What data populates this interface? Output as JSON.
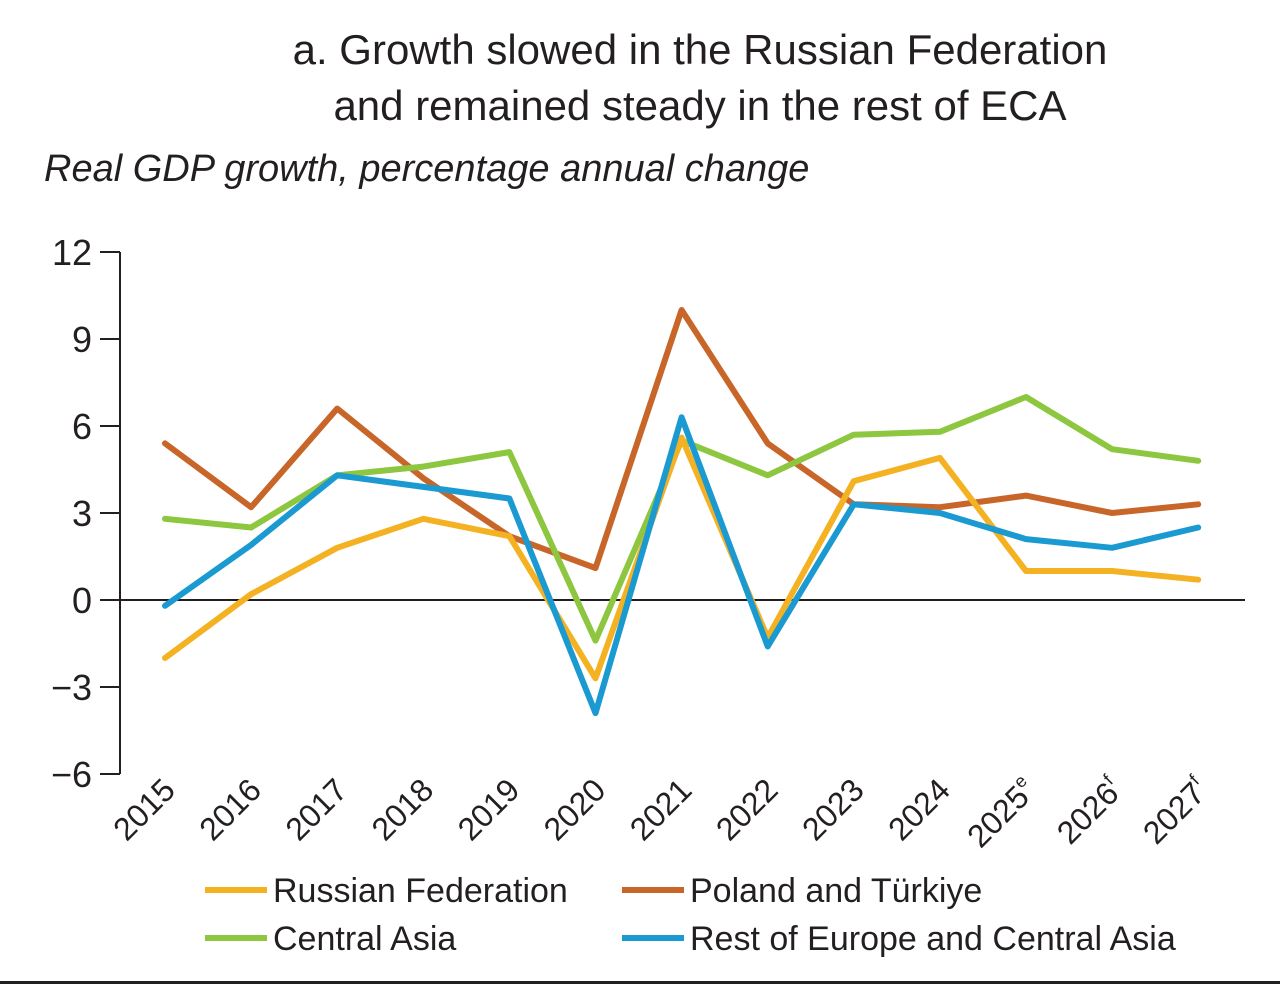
{
  "chart_data": {
    "type": "line",
    "title": "a. Growth slowed in the Russian Federation and remained steady in the rest of ECA",
    "title_lines": [
      "a. Growth slowed in the Russian Federation",
      "and remained steady in the rest of ECA"
    ],
    "subtitle": "Real GDP growth, percentage annual change",
    "xlabel": "",
    "ylabel": "",
    "categories": [
      "2015",
      "2016",
      "2017",
      "2018",
      "2019",
      "2020",
      "2021",
      "2022",
      "2023",
      "2024",
      "2025",
      "2026",
      "2027"
    ],
    "category_superscripts": [
      "",
      "",
      "",
      "",
      "",
      "",
      "",
      "",
      "",
      "",
      "e",
      "f",
      "f"
    ],
    "ylim": [
      -6,
      12
    ],
    "yticks": [
      12,
      9,
      6,
      3,
      0,
      -3,
      -6
    ],
    "ytick_labels": [
      "12",
      "9",
      "6",
      "3",
      "0",
      "−3",
      "−6"
    ],
    "grid": false,
    "legend_position": "bottom",
    "series": [
      {
        "name": "Russian Federation",
        "color": "#F4B223",
        "values": [
          -2.0,
          0.2,
          1.8,
          2.8,
          2.2,
          -2.7,
          5.6,
          -1.3,
          4.1,
          4.9,
          1.0,
          1.0,
          0.7
        ]
      },
      {
        "name": "Poland and Türkiye",
        "color": "#C8662A",
        "values": [
          5.4,
          3.2,
          6.6,
          4.2,
          2.2,
          1.1,
          10.0,
          5.4,
          3.3,
          3.2,
          3.6,
          3.0,
          3.3
        ]
      },
      {
        "name": "Central Asia",
        "color": "#8DC63F",
        "values": [
          2.8,
          2.5,
          4.3,
          4.6,
          5.1,
          -1.4,
          5.5,
          4.3,
          5.7,
          5.8,
          7.0,
          5.2,
          4.8
        ]
      },
      {
        "name": "Rest of Europe and Central Asia",
        "color": "#1B9AD2",
        "values": [
          -0.2,
          1.9,
          4.3,
          3.9,
          3.5,
          -3.9,
          6.3,
          -1.6,
          3.3,
          3.0,
          2.1,
          1.8,
          2.5
        ]
      }
    ]
  }
}
